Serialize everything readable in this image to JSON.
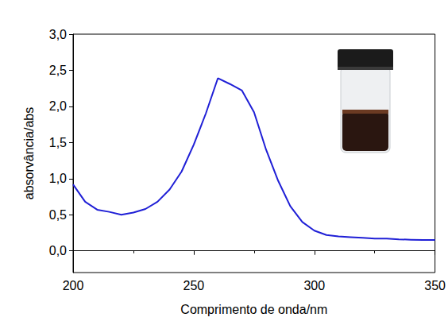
{
  "chart_data": {
    "type": "line",
    "x_label": "Comprimento de onda/nm",
    "y_label": "absorvância/abs",
    "color": "#1f1fd6",
    "x": [
      200,
      205,
      210,
      215,
      220,
      225,
      230,
      235,
      240,
      245,
      250,
      255,
      260,
      265,
      270,
      275,
      280,
      285,
      290,
      295,
      300,
      305,
      310,
      315,
      320,
      325,
      330,
      335,
      340,
      345,
      350
    ],
    "values": [
      0.92,
      0.68,
      0.57,
      0.54,
      0.5,
      0.53,
      0.58,
      0.68,
      0.85,
      1.1,
      1.47,
      1.9,
      2.39,
      2.31,
      2.22,
      1.92,
      1.4,
      0.97,
      0.62,
      0.4,
      0.28,
      0.22,
      0.2,
      0.19,
      0.18,
      0.17,
      0.17,
      0.16,
      0.155,
      0.15,
      0.15
    ],
    "xlim": [
      200,
      350
    ],
    "xticks": [
      200,
      250,
      300,
      350
    ],
    "ylim": [
      -0.3,
      3.0
    ],
    "yticks": [
      {
        "value": 0.0,
        "label": "0,0"
      },
      {
        "value": 0.5,
        "label": "0,5"
      },
      {
        "value": 1.0,
        "label": "1,0"
      },
      {
        "value": 1.5,
        "label": "1,5"
      },
      {
        "value": 2.0,
        "label": "2,0"
      },
      {
        "value": 2.5,
        "label": "2,5"
      },
      {
        "value": 3.0,
        "label": "3,0"
      }
    ],
    "grid": false
  }
}
